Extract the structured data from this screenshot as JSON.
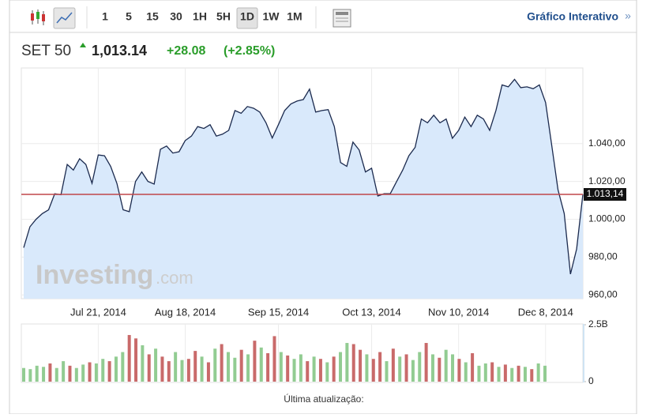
{
  "toolbar": {
    "periods": [
      "1",
      "5",
      "15",
      "30",
      "1H",
      "5H",
      "1D",
      "1W",
      "1M"
    ],
    "link": "Gráfico Interativo",
    "link_arrow": "»"
  },
  "quote": {
    "name": "SET 50",
    "price": "1,013.14",
    "change": "+28.08",
    "change_pct": "(+2.85%)"
  },
  "watermark": {
    "brand": "Investing",
    "suffix": ".com"
  },
  "footer": "Última atualização:",
  "chart_data": [
    {
      "type": "area",
      "color": "#1b2a4e",
      "fill": "#d9e9fb",
      "categories": [
        null,
        null,
        null,
        null,
        null,
        null,
        null,
        null,
        null,
        null,
        null,
        null,
        "Jul 21, 2014",
        null,
        null,
        null,
        null,
        null,
        null,
        null,
        null,
        null,
        null,
        null,
        null,
        null,
        "Aug 18, 2014",
        null,
        null,
        null,
        null,
        null,
        null,
        null,
        null,
        null,
        null,
        null,
        null,
        null,
        null,
        "Sep 15, 2014",
        null,
        null,
        null,
        null,
        null,
        null,
        null,
        null,
        null,
        null,
        null,
        null,
        null,
        null,
        "Oct 13, 2014",
        null,
        null,
        null,
        null,
        null,
        null,
        null,
        null,
        null,
        null,
        null,
        null,
        null,
        "Nov 10, 2014",
        null,
        null,
        null,
        null,
        null,
        null,
        null,
        null,
        null,
        null,
        null,
        null,
        null,
        "Dec 8, 2014",
        null,
        null,
        null,
        null,
        null,
        null
      ],
      "values": [
        985,
        996,
        1000,
        1003,
        1005,
        1013.5,
        1013,
        1029,
        1026,
        1032,
        1029,
        1019,
        1034,
        1033.6,
        1028,
        1019,
        1005,
        1004,
        1020,
        1025,
        1020,
        1018.6,
        1037,
        1038.7,
        1035,
        1035.7,
        1041.6,
        1044,
        1049,
        1048,
        1050,
        1044,
        1045,
        1047,
        1057.5,
        1056,
        1059.6,
        1058.7,
        1056.7,
        1051,
        1043,
        1050,
        1057.5,
        1061,
        1062.5,
        1063.3,
        1068.8,
        1056.7,
        1057.5,
        1058,
        1049,
        1030,
        1028,
        1040.8,
        1036.6,
        1025,
        1027,
        1012.3,
        1013.5,
        1013.5,
        1019.8,
        1026,
        1033.6,
        1038,
        1053,
        1051,
        1055,
        1051,
        1053,
        1042.8,
        1047,
        1054,
        1049,
        1055,
        1053,
        1047,
        1057.5,
        1071,
        1070,
        1074,
        1069.6,
        1070,
        1069,
        1071,
        1061.7,
        1038.7,
        1015.6,
        1003,
        971,
        984.3,
        1013.14
      ],
      "ylim": [
        958,
        1080
      ],
      "yticks": [
        {
          "value": 960,
          "label": "960,00"
        },
        {
          "value": 980,
          "label": "980,00"
        },
        {
          "value": 1000,
          "label": "1.000,00"
        },
        {
          "value": 1020,
          "label": "1.020,00"
        },
        {
          "value": 1040,
          "label": "1.040,00"
        }
      ],
      "grid": true,
      "reference_line": {
        "value": 1013.14,
        "label": "1.013,14",
        "color": "#c0474a"
      }
    },
    {
      "type": "bar",
      "values": [
        0.6,
        0.55,
        0.7,
        0.65,
        0.8,
        0.6,
        0.9,
        0.7,
        0.6,
        0.75,
        0.85,
        0.8,
        1.0,
        0.9,
        1.1,
        1.3,
        2.05,
        1.9,
        1.6,
        1.2,
        1.45,
        1.1,
        0.9,
        1.3,
        0.95,
        1.0,
        1.35,
        1.1,
        0.85,
        1.45,
        1.65,
        1.3,
        1.05,
        1.4,
        1.2,
        1.8,
        1.5,
        1.25,
        2.0,
        1.3,
        1.15,
        1.0,
        1.2,
        0.9,
        1.1,
        1.0,
        0.85,
        1.1,
        1.3,
        1.7,
        1.65,
        1.4,
        1.2,
        1.0,
        1.3,
        0.9,
        1.45,
        1.1,
        1.2,
        0.95,
        1.3,
        1.7,
        1.2,
        1.05,
        1.4,
        1.2,
        1.0,
        0.85,
        1.25,
        0.7,
        0.8,
        0.85,
        0.65,
        0.75,
        0.6,
        0.7,
        0.65,
        0.55,
        0.8,
        0.7
      ],
      "colors": [
        "#92cc92",
        "#92cc92",
        "#92cc92",
        "#92cc92",
        "#c96a6a",
        "#92cc92",
        "#92cc92",
        "#c96a6a",
        "#92cc92",
        "#92cc92",
        "#c96a6a",
        "#92cc92",
        "#92cc92",
        "#c96a6a",
        "#92cc92",
        "#92cc92",
        "#c96a6a",
        "#c96a6a",
        "#92cc92",
        "#c96a6a",
        "#92cc92",
        "#c96a6a",
        "#c96a6a",
        "#92cc92",
        "#92cc92",
        "#c96a6a",
        "#c96a6a",
        "#92cc92",
        "#c96a6a",
        "#92cc92",
        "#c96a6a",
        "#92cc92",
        "#92cc92",
        "#c96a6a",
        "#92cc92",
        "#c96a6a",
        "#92cc92",
        "#c96a6a",
        "#c96a6a",
        "#92cc92",
        "#c96a6a",
        "#92cc92",
        "#92cc92",
        "#c96a6a",
        "#92cc92",
        "#c96a6a",
        "#92cc92",
        "#c96a6a",
        "#92cc92",
        "#92cc92",
        "#c96a6a",
        "#c96a6a",
        "#92cc92",
        "#c96a6a",
        "#c96a6a",
        "#92cc92",
        "#c96a6a",
        "#92cc92",
        "#c96a6a",
        "#92cc92",
        "#92cc92",
        "#c96a6a",
        "#92cc92",
        "#c96a6a",
        "#92cc92",
        "#92cc92",
        "#c96a6a",
        "#92cc92",
        "#c96a6a",
        "#92cc92",
        "#92cc92",
        "#c96a6a",
        "#92cc92",
        "#c96a6a",
        "#92cc92",
        "#c96a6a",
        "#92cc92",
        "#c96a6a",
        "#92cc92",
        "#92cc92"
      ],
      "ylim": [
        0,
        2.5
      ],
      "yticks": [
        0,
        {
          "value": 2.5,
          "label": "2.5B"
        }
      ]
    }
  ]
}
